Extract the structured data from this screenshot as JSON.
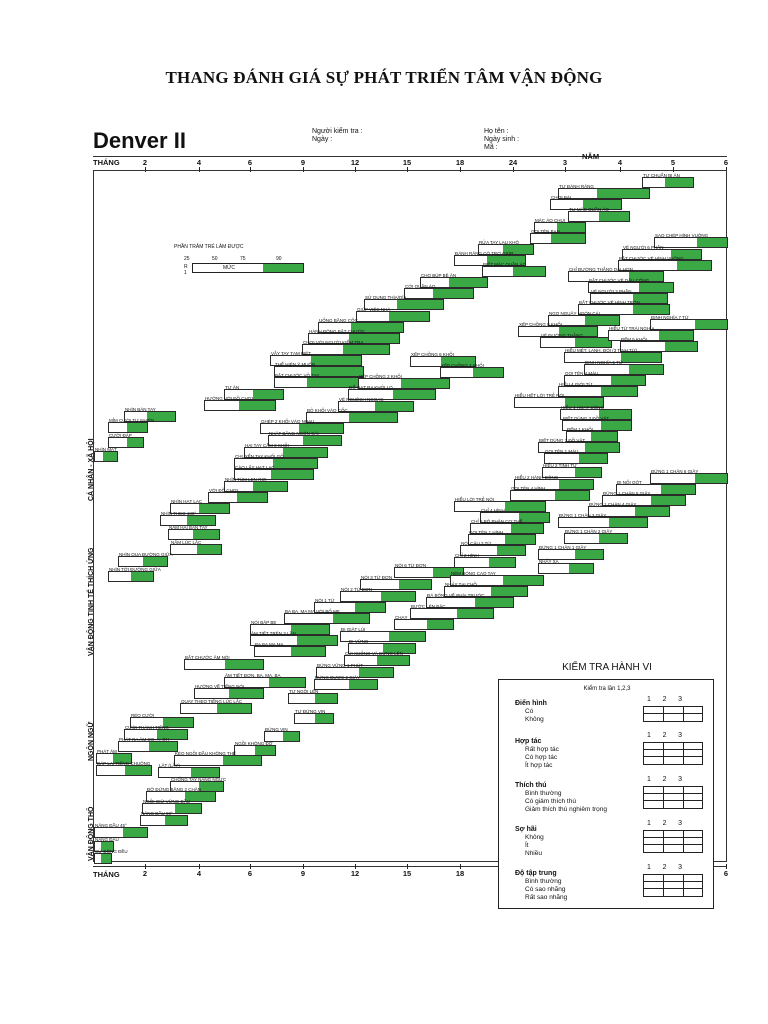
{
  "page": {
    "title": "THANG ĐÁNH GIÁ SỰ PHÁT TRIỂN TÂM VẬN ĐỘNG"
  },
  "form": {
    "logo": "Denver II",
    "examiner": "Người kiểm tra :",
    "date": "Ngày :",
    "name": "Họ tên :",
    "birth": "Ngày sinh :",
    "code": "Mã :",
    "months_label": "THÁNG",
    "years_label": "NĂM",
    "months": [
      "2",
      "4",
      "6",
      "9",
      "12",
      "15",
      "18",
      "24"
    ],
    "years": [
      "3",
      "4",
      "5",
      "6"
    ]
  },
  "legend": {
    "title": "PHẦN TRĂM TRẺ LÀM ĐƯỢC",
    "percents": [
      "25",
      "50",
      "75",
      "90"
    ],
    "r": "R",
    "one": "1",
    "level": "MỨC"
  },
  "sections": {
    "social": "CÁ NHÂN - XÃ HỘI",
    "fine": "VẬN ĐỘNG TINH TẾ THÍCH ỨNG",
    "lang": "NGÔN NGỮ",
    "gross": "VẬN ĐỘNG THÔ"
  },
  "items": {
    "s1": "TỰ CHUẨN BỊ ĂN",
    "s2": "TỰ ĐÁNH RĂNG",
    "s3": "CHƠI BÀI",
    "s4": "TỰ MẶC QUẦN ÁO",
    "s5": "MẶC ÁO CHUI",
    "s6": "GỌI TÊN BẠN",
    "s7": "RỬA TAY LAU KHÔ",
    "s8": "ĐÁNH RĂNG CÓ TRỢ GIÚP",
    "s9": "BIẾT MẶC QUẦN ÁO",
    "s10": "CHO BÚP BÊ ĂN",
    "s11": "CỞI QUẦN ÁO",
    "s12": "SỬ DỤNG THÌA/DĨA",
    "s13": "GIÚP VIỆC NHÀ",
    "s14": "UỐNG BẰNG CỐC",
    "s15": "HÀNH ĐỘNG BẮT CHƯỚC",
    "s16": "CHƠI VỚI NGƯỜI KIỂM TRA",
    "s17": "VẪY TAY TẠM BIỆT",
    "s18": "THỂ HIỆN Ý MUỐN",
    "s19": "BẮT CHƯỚC VỖ TAY",
    "s20": "TỰ ĂN",
    "s21": "HƯỚNG VỚI ĐỒ CHƠI",
    "s22": "NHÌN BÀN TAY",
    "s23": "MỈM CƯỜI TỰ NHIÊN",
    "s24": "CƯỜI ĐÁP",
    "s25": "NHÌN MẶT",
    "f1": "XẾP CHỒNG 8 KHỐI",
    "f2": "XẾP CHỒNG 6 KHỐI",
    "f3": "XẾP CHỒNG 4 KHỐI",
    "f4": "XẾP CHỒNG 2 KHỐI",
    "f5": "ĐỔ HẠT RA KHỎI LỌ",
    "f6": "VẼ NGUỆCH NGOẠC",
    "f7": "BỎ KHỐI VÀO CỐC",
    "f8": "GHÉP 2 KHỐI VÀO NHAU",
    "f9": "NHẶT BẰNG NGÓN CÁI",
    "f10": "HAI TAY CẦM 2 KHỐI",
    "f11": "CHUYỂN TAY KHỐI GỖ",
    "f12": "CÀO LẤY HẠT LẠC",
    "f13": "NHÌN TÚM LEN RƠI",
    "f14": "VỚI ĐỒ CHƠI",
    "f15": "NHÌN HẠT LẠC",
    "f16": "NHÌN THEO 180°",
    "f17": "NẮM HAI BÀN TAY",
    "f18": "NẮM LÚC LẮC",
    "f19": "NHÌN QUA ĐƯỜNG GIỮA",
    "f20": "NHÌN TỚI ĐƯỜNG GIỮA",
    "f21": "SAO CHÉP HÌNH VUÔNG",
    "f22": "VẼ NGƯỜI 6 PHẦN",
    "f23": "BẮT CHƯỚC VẼ HÌNH VUÔNG",
    "f24": "CHỈ ĐƯỜNG THẲNG DÀI HƠN",
    "f25": "BẮT CHƯỚC VẼ DẤU CỘNG",
    "f26": "VẼ NGƯỜI 3 PHẦN",
    "f27": "BẮT CHƯỚC VẼ HÌNH TRÒN",
    "f28": "NGỌ NGUẬY NGÓN CÁI",
    "f29": "VẼ ĐƯỜNG THẲNG",
    "l1": "ĐỊNH NGHĨA 7 TỪ",
    "l2": "HIỂU TỪ TRÁI NGHĨA",
    "l3": "ĐẾM 5 KHỐI",
    "l4": "HIỂU MỆT, LẠNH, ĐÓI (3 TÌNH TỪ)",
    "l5": "ĐỊNH NGHĨA 5 TỪ",
    "l6": "GỌI TÊN 4 MÀU",
    "l7": "HIỂU 4 GIỚI TỪ",
    "l8": "HIỂU HẾT LỜI TRẺ NÓI",
    "l9": "HIỂU 4 HOẠT ĐỘNG",
    "l10": "BIẾT DÙNG 3 ĐỒ VẬT",
    "l11": "ĐẾM 1 KHỐI",
    "l12": "BIẾT DÙNG 2 ĐỒ VẬT",
    "l13": "GỌI TÊN 1 MÀU",
    "l14": "HIỂU 2 TÍNH TỪ",
    "l15": "HIỂU 2 HÀNH ĐỘNG",
    "l16": "GỌI TÊN 4 HÌNH",
    "l17": "HIỂU LỜI TRẺ NÓI",
    "l18": "CHỈ 4 HÌNH",
    "l19": "CHỈ 6 BỘ PHẬN CƠ THỂ",
    "l20": "GỌI TÊN 1 HÌNH",
    "l21": "NÓI CÂU 2 TỪ",
    "l22": "CHỈ 2 HÌNH",
    "l23": "NÓI 6 TỪ ĐƠN",
    "l24": "NÓI 3 TỪ ĐƠN",
    "l25": "NÓI 2 TỪ ĐƠN",
    "l26": "NÓI 1 TỪ",
    "l27": "BA BA, MA MA VỚI BỐ MẸ",
    "l28": "NÓI BẬP BẸ",
    "l29": "ÂM TIẾT TRÊN 3 LẦN",
    "l30": "BA BA MA MA",
    "l31": "BẮT CHƯỚC ÂM NÓI",
    "l32": "ÂM TIẾT ĐƠN, BA, MA, BA",
    "l33": "HƯỚNG VỀ TIẾNG NÓI",
    "l34": "QUAY THEO TIẾNG LÚC LẮC",
    "l35": "RÉO CƯỜI",
    "l36": "CƯỜI THÀNH TIẾNG",
    "l37": "PHÁT RA ÂM OO, A, OH",
    "l38": "PHÁT ÂM",
    "l39": "ĐÁP LẠI TIẾNG CHUÔNG",
    "g1": "ĐỨNG 1 CHÂN 6 GIÂY",
    "g2": "ĐI NỐI GÓT",
    "g3": "ĐỨNG 1 CHÂN 5 GIÂY",
    "g4": "ĐỨNG 1 CHÂN 4 GIÂY",
    "g5": "ĐỨNG 1 CHÂN 3 GIÂY",
    "g6": "ĐỨNG 1 CHÂN 2 GIÂY",
    "g7": "ĐỨNG 1 CHÂN 1 GIÂY",
    "g8": "NHẢY XA",
    "g9": "NÉM BÓNG CAO TAY",
    "g10": "NHẢY TẠI CHỖ",
    "g11": "ĐÁ BÓNG VỀ PHÍA TRƯỚC",
    "g12": "BƯỚC LÊN BẬC",
    "g13": "CHẠY",
    "g14": "ĐI GIẬT LÙI",
    "g15": "ĐI VỮNG",
    "g16": "CÚI XUỐNG VÀ ĐỨNG LÊN",
    "g17": "ĐỨNG VỮNG 1 PHÚT",
    "g18": "ĐỨNG ĐƯỢC 2 GIÂY",
    "g19": "TỰ NGỒI LÊN",
    "g20": "TỰ ĐỨNG VỊN",
    "g21": "ĐỨNG VỊN",
    "g22": "NGỒI KHÔNG ĐỠ",
    "g23": "KÉO NGỒI ĐẦU KHÔNG THẾ",
    "g24": "LẬT (LẪY)",
    "g25": "CHỐNG TAY NÂNG NGỰC",
    "g26": "ĐỠ ĐỨNG BẰNG 2 CHÂN",
    "g27": "NGỒI GIỮ VỮNG ĐẦU",
    "g28": "NÂNG ĐẦU 90°",
    "g29": "NÂNG ĐẦU 45°",
    "g30": "NÂNG ĐẦU",
    "g31": "CỬ ĐỘNG ĐỀU"
  },
  "behavior": {
    "title": "KIỂM TRA HÀNH VI",
    "subtitle": "Kiểm tra lần 1,2,3",
    "cols": [
      "1",
      "2",
      "3"
    ],
    "c1": "Điển hình",
    "c1a": "Có",
    "c1b": "Không",
    "c2": "Hợp tác",
    "c2a": "Rất hợp tác",
    "c2b": "Có hợp tác",
    "c2c": "Ít hợp tác",
    "c3": "Thích thú",
    "c3a": "Bình thường",
    "c3b": "Có giảm thích thú",
    "c3c": "Giảm thích thú nghiêm trọng",
    "c4": "Sợ hãi",
    "c4a": "Không",
    "c4b": "Ít",
    "c4c": "Nhiều",
    "c5": "Độ tập trung",
    "c5a": "Bình thường",
    "c5b": "Có sao nhãng",
    "c5c": "Rất sao nhãng"
  },
  "colors": {
    "accent": "#3aa845"
  }
}
